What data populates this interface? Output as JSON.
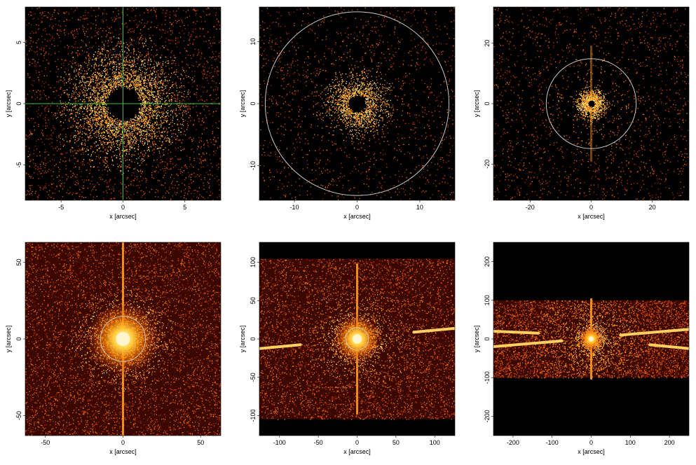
{
  "chart_data": [
    {
      "type": "image",
      "xlabel": "x [arcsec]",
      "ylabel": "y [arcsec]",
      "xlim": [
        -7.9,
        7.9
      ],
      "ylim": [
        -7.9,
        7.9
      ],
      "xticks": [
        -5,
        0,
        5
      ],
      "yticks": [
        -5,
        0,
        5
      ]
    },
    {
      "type": "image",
      "xlabel": "x [arcsec]",
      "ylabel": "y [arcsec]",
      "xlim": [
        -15.6,
        15.6
      ],
      "ylim": [
        -15.6,
        15.6
      ],
      "xticks": [
        -10,
        0,
        10
      ],
      "yticks": [
        -10,
        0,
        10
      ]
    },
    {
      "type": "image",
      "xlabel": "x [arcsec]",
      "ylabel": "y [arcsec]",
      "xlim": [
        -32,
        32
      ],
      "ylim": [
        -32,
        32
      ],
      "xticks": [
        -20,
        0,
        20
      ],
      "yticks": [
        -20,
        0,
        20
      ]
    },
    {
      "type": "image",
      "xlabel": "x [arcsec]",
      "ylabel": "y [arcsec]",
      "xlim": [
        -63,
        63
      ],
      "ylim": [
        -63,
        63
      ],
      "xticks": [
        -50,
        0,
        50
      ],
      "yticks": [
        -50,
        0,
        50
      ]
    },
    {
      "type": "image",
      "xlabel": "x [arcsec]",
      "ylabel": "y [arcsec]",
      "xlim": [
        -126,
        126
      ],
      "ylim": [
        -126,
        126
      ],
      "xticks": [
        -100,
        -50,
        0,
        50,
        100
      ],
      "yticks": [
        -100,
        -50,
        0,
        50,
        100
      ]
    },
    {
      "type": "image",
      "xlabel": "x [arcsec]",
      "ylabel": "y [arcsec]",
      "xlim": [
        -250,
        250
      ],
      "ylim": [
        -250,
        250
      ],
      "xticks": [
        -200,
        -100,
        0,
        100,
        200
      ],
      "yticks": [
        -200,
        -100,
        0,
        100,
        200
      ]
    }
  ]
}
